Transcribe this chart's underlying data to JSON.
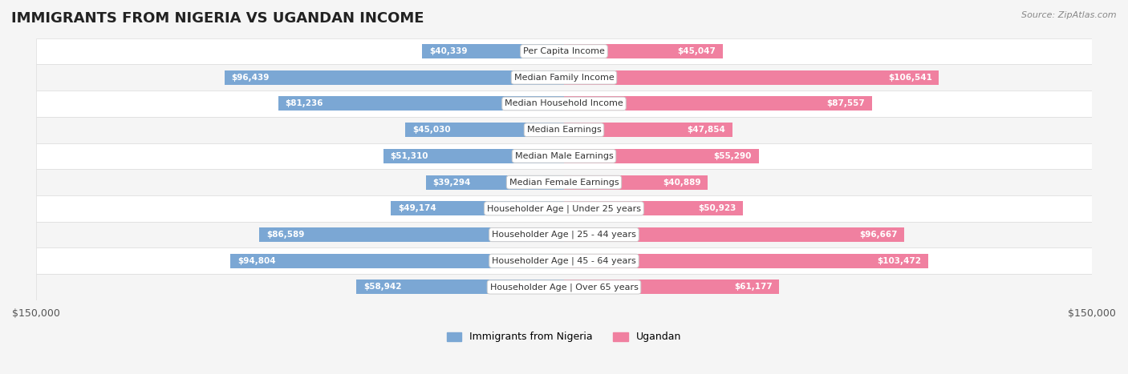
{
  "title": "IMMIGRANTS FROM NIGERIA VS UGANDAN INCOME",
  "source": "Source: ZipAtlas.com",
  "categories": [
    "Per Capita Income",
    "Median Family Income",
    "Median Household Income",
    "Median Earnings",
    "Median Male Earnings",
    "Median Female Earnings",
    "Householder Age | Under 25 years",
    "Householder Age | 25 - 44 years",
    "Householder Age | 45 - 64 years",
    "Householder Age | Over 65 years"
  ],
  "nigeria_values": [
    40339,
    96439,
    81236,
    45030,
    51310,
    39294,
    49174,
    86589,
    94804,
    58942
  ],
  "ugandan_values": [
    45047,
    106541,
    87557,
    47854,
    55290,
    40889,
    50923,
    96667,
    103472,
    61177
  ],
  "nigeria_labels": [
    "$40,339",
    "$96,439",
    "$81,236",
    "$45,030",
    "$51,310",
    "$39,294",
    "$49,174",
    "$86,589",
    "$94,804",
    "$58,942"
  ],
  "ugandan_labels": [
    "$45,047",
    "$106,541",
    "$87,557",
    "$47,854",
    "$55,290",
    "$40,889",
    "$50,923",
    "$96,667",
    "$103,472",
    "$61,177"
  ],
  "nigeria_color": "#7BA7D4",
  "ugandan_color": "#F080A0",
  "nigeria_label_color_inside": "#ffffff",
  "nigeria_label_color_outside": "#555555",
  "ugandan_label_color_inside": "#ffffff",
  "ugandan_label_color_outside": "#555555",
  "max_value": 150000,
  "bg_color": "#f5f5f5",
  "row_bg_color": "#ffffff",
  "row_alt_bg_color": "#f0f0f0",
  "legend_nigeria": "Immigrants from Nigeria",
  "legend_ugandan": "Ugandan",
  "axis_label_left": "$150,000",
  "axis_label_right": "$150,000"
}
